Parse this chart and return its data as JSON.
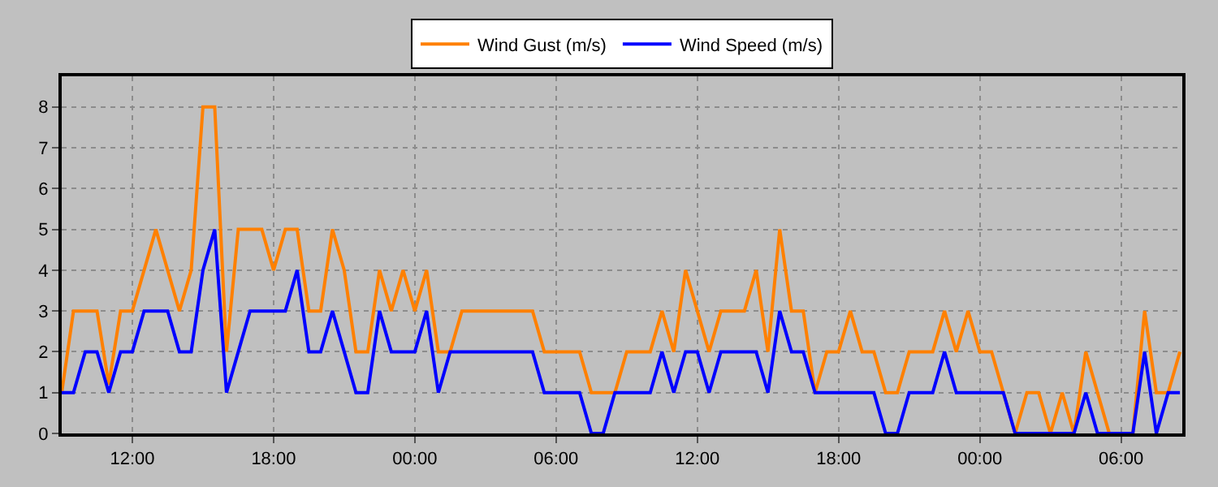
{
  "chart_data": {
    "type": "line",
    "x": [
      "--01-01T09:00",
      "--01-01T09:30",
      "--01-01T10:00",
      "--01-01T10:30",
      "--01-01T11:00",
      "--01-01T11:30",
      "--01-01T12:00",
      "--01-01T12:30",
      "--01-01T13:00",
      "--01-01T13:30",
      "--01-01T14:00",
      "--01-01T14:30",
      "--01-01T15:00",
      "--01-01T15:30",
      "--01-01T16:00",
      "--01-01T16:30",
      "--01-01T17:00",
      "--01-01T17:30",
      "--01-01T18:00",
      "--01-01T18:30",
      "--01-01T19:00",
      "--01-01T19:30",
      "--01-01T20:00",
      "--01-01T20:30",
      "--01-01T21:00",
      "--01-01T21:30",
      "--01-01T22:00",
      "--01-01T22:30",
      "--01-01T23:00",
      "--01-01T23:30",
      "--01-02T00:00",
      "--01-02T00:30",
      "--01-02T01:00",
      "--01-02T01:30",
      "--01-02T02:00",
      "--01-02T02:30",
      "--01-02T03:00",
      "--01-02T03:30",
      "--01-02T04:00",
      "--01-02T04:30",
      "--01-02T05:00",
      "--01-02T05:30",
      "--01-02T06:00",
      "--01-02T06:30",
      "--01-02T07:00",
      "--01-02T07:30",
      "--01-02T08:00",
      "--01-02T08:30",
      "--01-02T09:00",
      "--01-02T09:30",
      "--01-02T10:00",
      "--01-02T10:30",
      "--01-02T11:00",
      "--01-02T11:30",
      "--01-02T12:00",
      "--01-02T12:30",
      "--01-02T13:00",
      "--01-02T13:30",
      "--01-02T14:00",
      "--01-02T14:30",
      "--01-02T15:00",
      "--01-02T15:30",
      "--01-02T16:00",
      "--01-02T16:30",
      "--01-02T17:00",
      "--01-02T17:30",
      "--01-02T18:00",
      "--01-02T18:30",
      "--01-02T19:00",
      "--01-02T19:30",
      "--01-02T20:00",
      "--01-02T20:30",
      "--01-02T21:00",
      "--01-02T21:30",
      "--01-02T22:00",
      "--01-02T22:30",
      "--01-02T23:00",
      "--01-02T23:30",
      "--01-03T00:00",
      "--01-03T00:30",
      "--01-03T01:00",
      "--01-03T01:30",
      "--01-03T02:00",
      "--01-03T02:30",
      "--01-03T03:00",
      "--01-03T03:30",
      "--01-03T04:00",
      "--01-03T04:30",
      "--01-03T05:00",
      "--01-03T05:30",
      "--01-03T06:00",
      "--01-03T06:30",
      "--01-03T07:00",
      "--01-03T07:30",
      "--01-03T08:00",
      "--01-03T08:30"
    ],
    "series": [
      {
        "name": "Wind Gust (m/s)",
        "color": "#ff8000",
        "values": [
          1,
          3,
          3,
          3,
          1.2,
          3,
          3,
          4,
          5,
          4,
          3,
          4,
          8,
          8,
          2,
          5,
          5,
          5,
          4,
          5,
          5,
          3,
          3,
          5,
          4,
          2,
          2,
          4,
          3,
          4,
          3,
          4,
          2,
          2,
          3,
          3,
          3,
          3,
          3,
          3,
          3,
          2,
          2,
          2,
          2,
          1,
          1,
          1,
          2,
          2,
          2,
          3,
          2,
          4,
          3,
          2,
          3,
          3,
          3,
          4,
          2,
          5,
          3,
          3,
          1,
          2,
          2,
          3,
          2,
          2,
          1,
          1,
          2,
          2,
          2,
          3,
          2,
          3,
          2,
          2,
          1,
          0,
          1,
          1,
          0,
          1,
          0,
          2,
          1,
          0,
          0,
          0,
          3,
          1,
          1,
          2
        ]
      },
      {
        "name": "Wind Speed (m/s)",
        "color": "#0000ff",
        "values": [
          1,
          1,
          2,
          2,
          1,
          2,
          2,
          3,
          3,
          3,
          2,
          2,
          4,
          5,
          1,
          2,
          3,
          3,
          3,
          3,
          4,
          2,
          2,
          3,
          2,
          1,
          1,
          3,
          2,
          2,
          2,
          3,
          1,
          2,
          2,
          2,
          2,
          2,
          2,
          2,
          2,
          1,
          1,
          1,
          1,
          0,
          0,
          1,
          1,
          1,
          1,
          2,
          1,
          2,
          2,
          1,
          2,
          2,
          2,
          2,
          1,
          3,
          2,
          2,
          1,
          1,
          1,
          1,
          1,
          1,
          0,
          0,
          1,
          1,
          1,
          2,
          1,
          1,
          1,
          1,
          1,
          0,
          0,
          0,
          0,
          0,
          0,
          1,
          0,
          0,
          0,
          0,
          2,
          0,
          1,
          1
        ]
      }
    ],
    "xlim": [
      "--01-01T09:00",
      "--01-03T08:36"
    ],
    "xticks": [
      {
        "value": "--01-01T12:00",
        "label": "12:00"
      },
      {
        "value": "--01-01T18:00",
        "label": "18:00"
      },
      {
        "value": "--01-02T00:00",
        "label": "00:00"
      },
      {
        "value": "--01-02T06:00",
        "label": "06:00"
      },
      {
        "value": "--01-02T12:00",
        "label": "12:00"
      },
      {
        "value": "--01-02T18:00",
        "label": "18:00"
      },
      {
        "value": "--01-03T00:00",
        "label": "00:00"
      },
      {
        "value": "--01-03T06:00",
        "label": "06:00"
      }
    ],
    "ylim": [
      0,
      8.75
    ],
    "yticks": [
      0,
      1,
      2,
      3,
      4,
      5,
      6,
      7,
      8
    ],
    "grid": true,
    "legend": "top",
    "marker": "none",
    "line_style": "solid"
  }
}
